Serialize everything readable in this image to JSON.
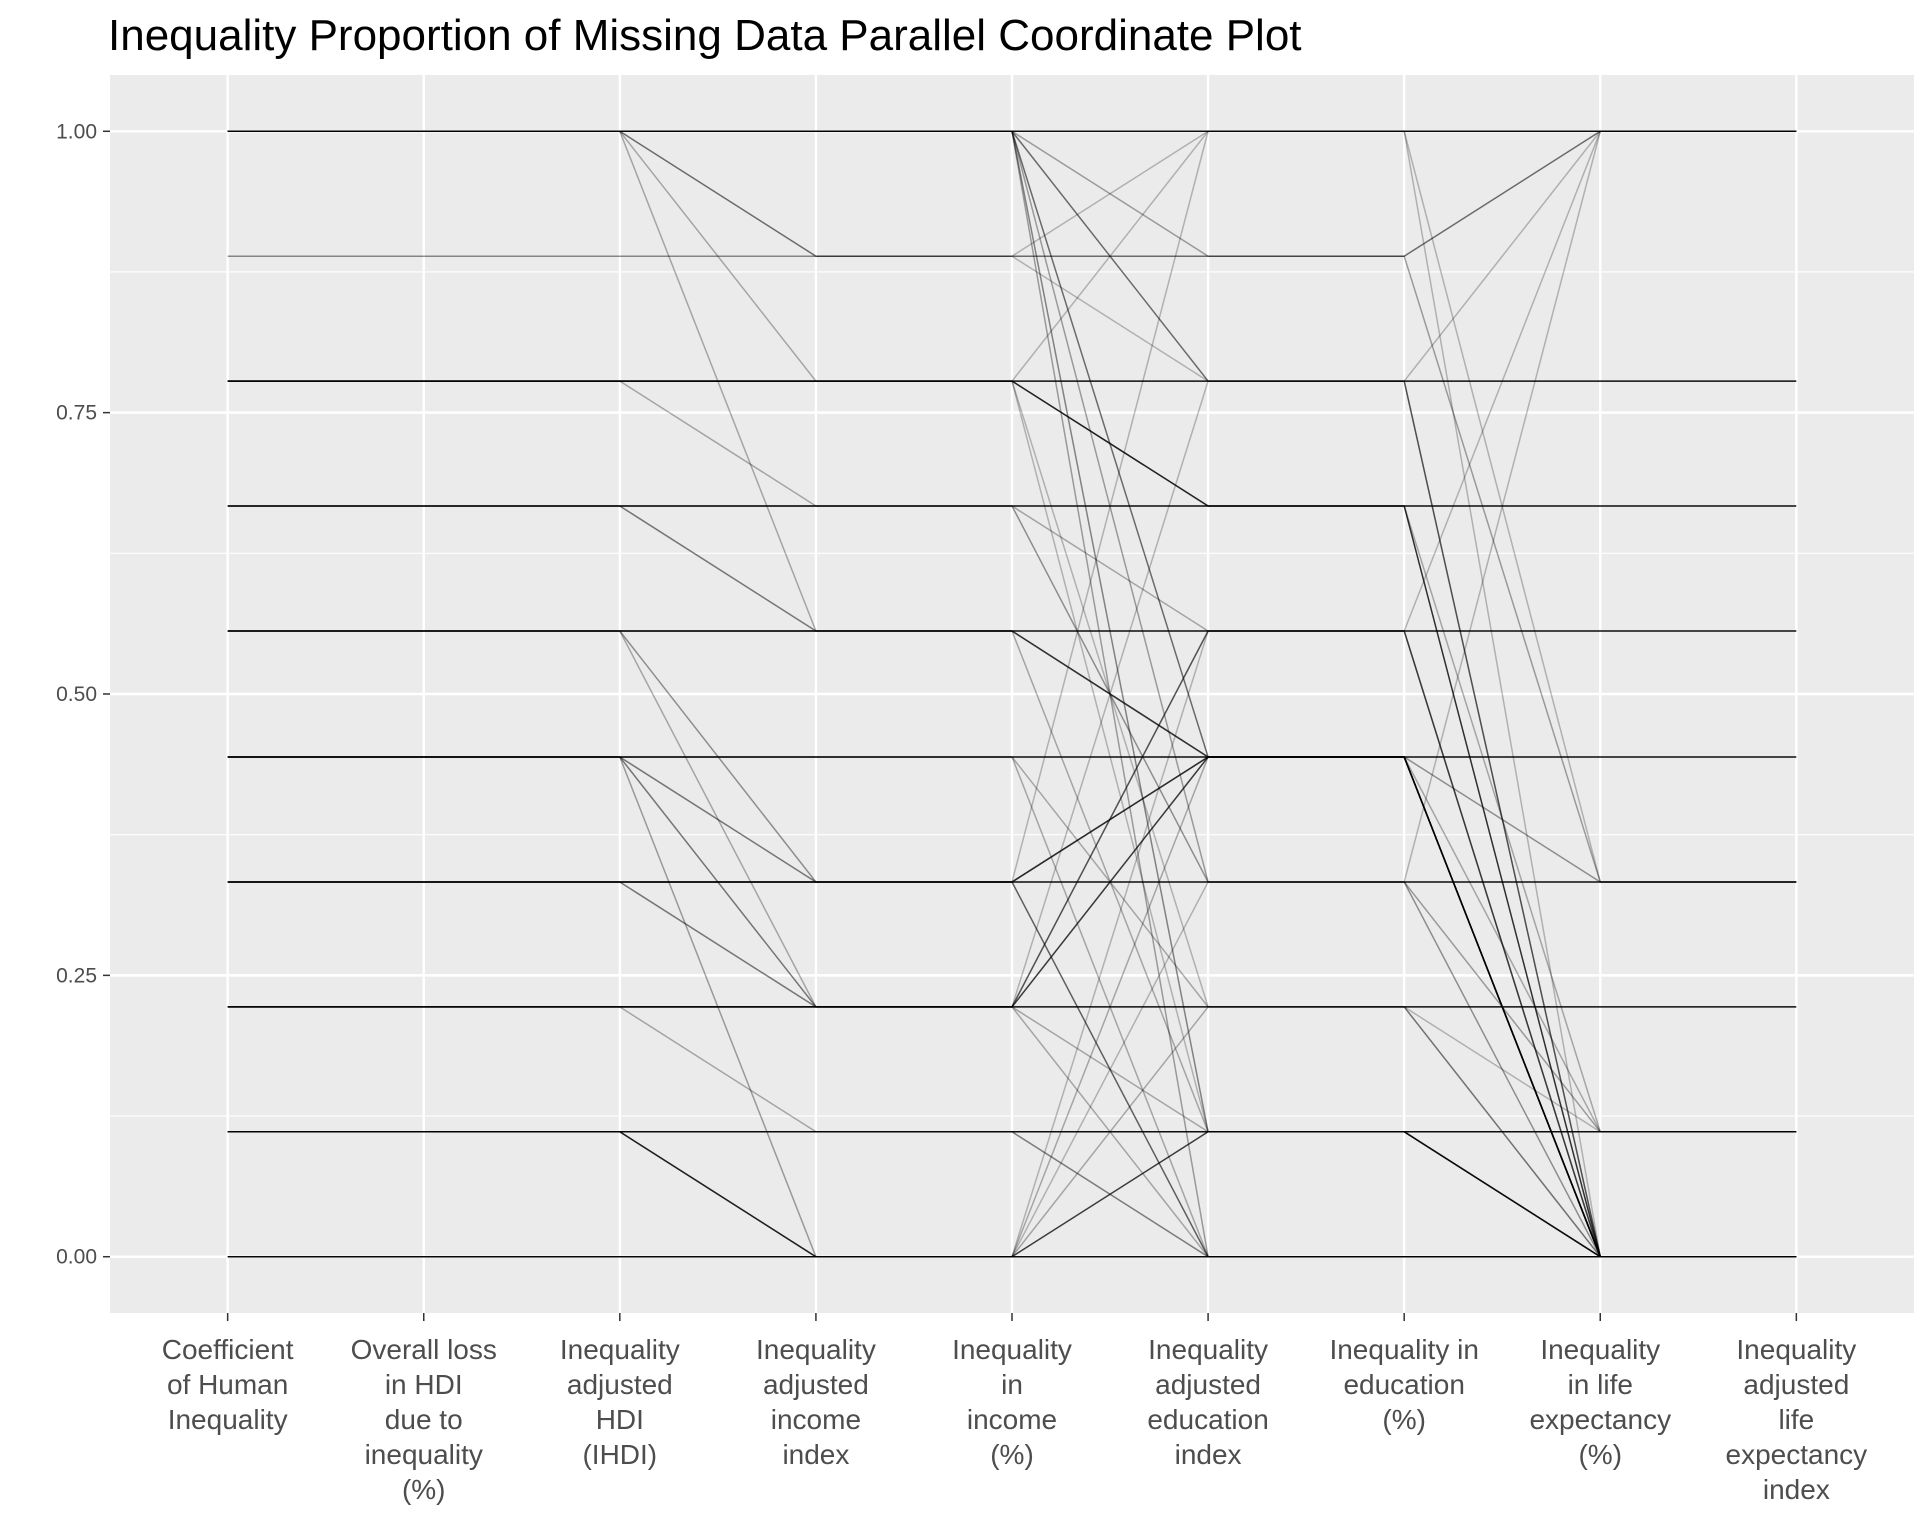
{
  "chart_data": {
    "type": "parallel-coordinates",
    "title": "Inequality Proportion of Missing Data Parallel Coordinate Plot",
    "xlabel": "",
    "ylabel": "",
    "ylim": [
      -0.05,
      1.05
    ],
    "y_ticks": [
      "0.00",
      "0.25",
      "0.50",
      "0.75",
      "1.00"
    ],
    "y_tick_values": [
      0,
      0.25,
      0.5,
      0.75,
      1
    ],
    "axes": [
      "Coefficient\nof Human\nInequality",
      "Overall loss\nin HDI\ndue to\ninequality\n(%)",
      "Inequality\nadjusted\nHDI\n(IHDI)",
      "Inequality\nadjusted\nincome\nindex",
      "Inequality\nin\nincome\n(%)",
      "Inequality\nadjusted\neducation\nindex",
      "Inequality in\neducation\n(%)",
      "Inequality\nin life\nexpectancy\n(%)",
      "Inequality\nadjusted\nlife\nexpectancy\nindex"
    ],
    "grid": true,
    "background": "#ebebeb",
    "line_color": "#000000",
    "lines": [
      {
        "v": [
          1,
          1,
          1,
          1,
          1,
          1,
          1,
          1,
          1
        ],
        "o": 0.95
      },
      {
        "v": [
          1,
          1,
          1,
          0.889,
          0.889,
          0.889,
          0.889,
          1,
          1
        ],
        "o": 0.55
      },
      {
        "v": [
          1,
          1,
          1,
          0.778,
          0.778,
          0.667,
          0.667,
          0.111,
          0.111
        ],
        "o": 0.3
      },
      {
        "v": [
          1,
          1,
          1,
          0.556,
          0.556,
          0.444,
          0.444,
          0,
          0
        ],
        "o": 0.3
      },
      {
        "v": [
          1,
          1,
          1,
          1,
          1,
          0.778,
          0.778,
          0,
          0
        ],
        "o": 0.55
      },
      {
        "v": [
          1,
          1,
          1,
          1,
          1,
          0.444,
          0.444,
          0,
          0
        ],
        "o": 0.55
      },
      {
        "v": [
          1,
          1,
          1,
          1,
          1,
          0.333,
          0.333,
          0.111,
          0.111
        ],
        "o": 0.35
      },
      {
        "v": [
          1,
          1,
          1,
          1,
          1,
          0.111,
          0.111,
          0,
          0
        ],
        "o": 0.45
      },
      {
        "v": [
          1,
          1,
          1,
          1,
          1,
          0,
          0,
          0,
          0
        ],
        "o": 0.35
      },
      {
        "v": [
          1,
          1,
          1,
          1,
          1,
          0.889,
          0.889,
          0.333,
          0.333
        ],
        "o": 0.35
      },
      {
        "v": [
          0.889,
          0.889,
          0.889,
          0.889,
          0.889,
          1,
          1,
          0,
          0
        ],
        "o": 0.25
      },
      {
        "v": [
          0.889,
          0.889,
          0.889,
          0.889,
          0.889,
          0.778,
          0.778,
          0,
          0
        ],
        "o": 0.25
      },
      {
        "v": [
          0.778,
          0.778,
          0.778,
          0.778,
          0.778,
          0.778,
          0.778,
          0.778,
          0.778
        ],
        "o": 0.95
      },
      {
        "v": [
          0.778,
          0.778,
          0.778,
          0.778,
          0.778,
          0.667,
          0.667,
          0,
          0
        ],
        "o": 0.8
      },
      {
        "v": [
          0.778,
          0.778,
          0.778,
          0.667,
          0.667,
          0.556,
          0.556,
          0,
          0
        ],
        "o": 0.3
      },
      {
        "v": [
          0.778,
          0.778,
          0.778,
          0.778,
          0.778,
          1,
          1,
          0.333,
          0.333
        ],
        "o": 0.25
      },
      {
        "v": [
          0.778,
          0.778,
          0.778,
          0.778,
          0.778,
          0.222,
          0.222,
          0.111,
          0.111
        ],
        "o": 0.25
      },
      {
        "v": [
          0.778,
          0.778,
          0.778,
          0.778,
          0.778,
          0.111,
          0.111,
          0,
          0
        ],
        "o": 0.25
      },
      {
        "v": [
          0.667,
          0.667,
          0.667,
          0.667,
          0.667,
          0.667,
          0.667,
          0.667,
          0.667
        ],
        "o": 0.95
      },
      {
        "v": [
          0.667,
          0.667,
          0.667,
          0.556,
          0.556,
          0.444,
          0.444,
          0,
          0
        ],
        "o": 0.5
      },
      {
        "v": [
          0.667,
          0.667,
          0.667,
          0.667,
          0.667,
          0.333,
          0.333,
          0,
          0
        ],
        "o": 0.4
      },
      {
        "v": [
          0.556,
          0.556,
          0.556,
          0.556,
          0.556,
          0.556,
          0.556,
          0.556,
          0.556
        ],
        "o": 0.95
      },
      {
        "v": [
          0.556,
          0.556,
          0.556,
          0.333,
          0.333,
          0.444,
          0.444,
          0,
          0
        ],
        "o": 0.4
      },
      {
        "v": [
          0.556,
          0.556,
          0.556,
          0.222,
          0.222,
          0.556,
          0.556,
          0,
          0
        ],
        "o": 0.3
      },
      {
        "v": [
          0.556,
          0.556,
          0.556,
          0.556,
          0.556,
          0.444,
          0.444,
          0.333,
          0.333
        ],
        "o": 0.4
      },
      {
        "v": [
          0.556,
          0.556,
          0.556,
          0.556,
          0.556,
          0.111,
          0.111,
          0,
          0
        ],
        "o": 0.3
      },
      {
        "v": [
          0.444,
          0.444,
          0.444,
          0.444,
          0.444,
          0.444,
          0.444,
          0.444,
          0.444
        ],
        "o": 0.95
      },
      {
        "v": [
          0.444,
          0.444,
          0.444,
          0.333,
          0.333,
          0.444,
          0.444,
          0,
          0
        ],
        "o": 0.5
      },
      {
        "v": [
          0.444,
          0.444,
          0.444,
          0.222,
          0.222,
          0.444,
          0.444,
          0,
          0
        ],
        "o": 0.5
      },
      {
        "v": [
          0.444,
          0.444,
          0.444,
          0,
          0,
          0,
          0,
          0,
          0
        ],
        "o": 0.35
      },
      {
        "v": [
          0.444,
          0.444,
          0.444,
          0.444,
          0.444,
          0,
          0,
          0,
          0
        ],
        "o": 0.3
      },
      {
        "v": [
          0.444,
          0.444,
          0.444,
          0.444,
          0.444,
          0.222,
          0.222,
          0,
          0
        ],
        "o": 0.3
      },
      {
        "v": [
          0.333,
          0.333,
          0.333,
          0.333,
          0.333,
          0.333,
          0.333,
          0.333,
          0.333
        ],
        "o": 0.95
      },
      {
        "v": [
          0.333,
          0.333,
          0.333,
          0.222,
          0.222,
          0.556,
          0.556,
          0,
          0
        ],
        "o": 0.5
      },
      {
        "v": [
          0.333,
          0.333,
          0.333,
          0.333,
          0.333,
          0,
          0,
          0,
          0
        ],
        "o": 0.6
      },
      {
        "v": [
          0.333,
          0.333,
          0.333,
          0.333,
          0.333,
          0.444,
          0.444,
          0,
          0
        ],
        "o": 0.4
      },
      {
        "v": [
          0.333,
          0.333,
          0.333,
          0.333,
          0.333,
          1,
          1,
          1,
          1
        ],
        "o": 0.25
      },
      {
        "v": [
          0.222,
          0.222,
          0.222,
          0.222,
          0.222,
          0.222,
          0.222,
          0.222,
          0.222
        ],
        "o": 0.95
      },
      {
        "v": [
          0.222,
          0.222,
          0.222,
          0.111,
          0.111,
          0,
          0,
          0,
          0
        ],
        "o": 0.3
      },
      {
        "v": [
          0.222,
          0.222,
          0.222,
          0.222,
          0.222,
          0.444,
          0.444,
          0,
          0
        ],
        "o": 0.5
      },
      {
        "v": [
          0.222,
          0.222,
          0.222,
          0.222,
          0.222,
          0.111,
          0.111,
          0,
          0
        ],
        "o": 0.3
      },
      {
        "v": [
          0.222,
          0.222,
          0.222,
          0.222,
          0.222,
          0,
          0,
          0,
          0
        ],
        "o": 0.3
      },
      {
        "v": [
          0.222,
          0.222,
          0.222,
          0.222,
          0.222,
          0.778,
          0.778,
          1,
          1
        ],
        "o": 0.25
      },
      {
        "v": [
          0.111,
          0.111,
          0.111,
          0.111,
          0.111,
          0.111,
          0.111,
          0.111,
          0.111
        ],
        "o": 0.95
      },
      {
        "v": [
          0.111,
          0.111,
          0.111,
          0,
          0,
          0.111,
          0.111,
          0,
          0
        ],
        "o": 0.75
      },
      {
        "v": [
          0.111,
          0.111,
          0.111,
          0,
          0,
          0.222,
          0.222,
          0,
          0
        ],
        "o": 0.3
      },
      {
        "v": [
          0.111,
          0.111,
          0.111,
          0,
          0,
          0.556,
          0.556,
          1,
          1
        ],
        "o": 0.25
      },
      {
        "v": [
          0.111,
          0.111,
          0.111,
          0.111,
          0.111,
          0,
          0,
          0,
          0
        ],
        "o": 0.25
      },
      {
        "v": [
          0,
          0,
          0,
          0,
          0,
          0,
          0,
          0,
          0
        ],
        "o": 0.95
      },
      {
        "v": [
          0,
          0,
          0,
          0,
          0,
          0.333,
          0.333,
          1,
          1
        ],
        "o": 0.25
      },
      {
        "v": [
          0,
          0,
          0,
          0,
          0,
          0.444,
          0.444,
          0.111,
          0.111
        ],
        "o": 0.3
      }
    ]
  }
}
